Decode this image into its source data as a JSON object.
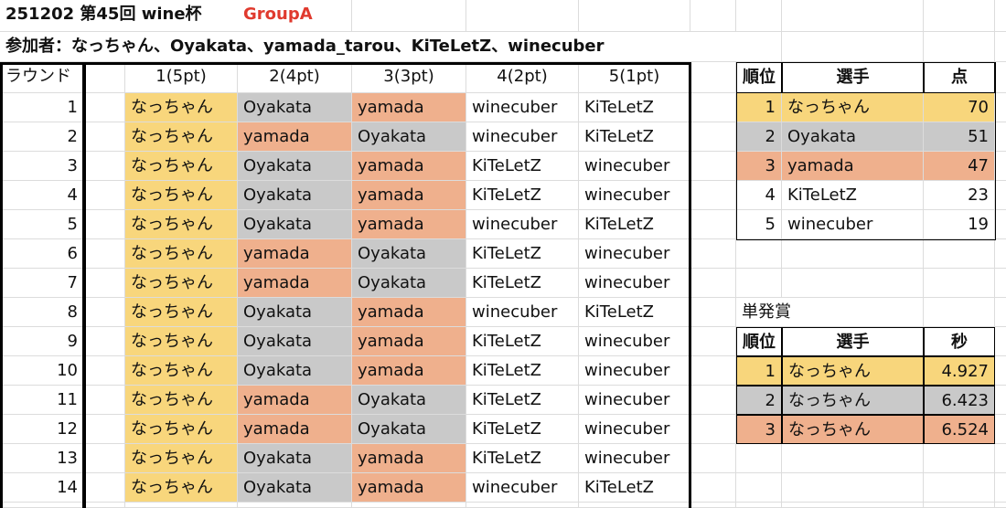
{
  "header": {
    "title": "251202 第45回 wine杯",
    "group": "GroupA",
    "participants": "参加者：なっちゃん、Oyakata、yamada_tarou、KiTeLetZ、winecuber"
  },
  "results": {
    "columns": [
      "ラウンド",
      "1(5pt)",
      "2(4pt)",
      "3(3pt)",
      "4(2pt)",
      "5(1pt)"
    ],
    "rows": [
      [
        1,
        "なっちゃん",
        "Oyakata",
        "yamada",
        "winecuber",
        "KiTeLetZ"
      ],
      [
        2,
        "なっちゃん",
        "yamada",
        "Oyakata",
        "winecuber",
        "KiTeLetZ"
      ],
      [
        3,
        "なっちゃん",
        "Oyakata",
        "yamada",
        "KiTeLetZ",
        "winecuber"
      ],
      [
        4,
        "なっちゃん",
        "Oyakata",
        "yamada",
        "KiTeLetZ",
        "winecuber"
      ],
      [
        5,
        "なっちゃん",
        "Oyakata",
        "yamada",
        "winecuber",
        "KiTeLetZ"
      ],
      [
        6,
        "なっちゃん",
        "yamada",
        "Oyakata",
        "KiTeLetZ",
        "winecuber"
      ],
      [
        7,
        "なっちゃん",
        "yamada",
        "Oyakata",
        "KiTeLetZ",
        "winecuber"
      ],
      [
        8,
        "なっちゃん",
        "Oyakata",
        "yamada",
        "winecuber",
        "KiTeLetZ"
      ],
      [
        9,
        "なっちゃん",
        "Oyakata",
        "yamada",
        "KiTeLetZ",
        "winecuber"
      ],
      [
        10,
        "なっちゃん",
        "Oyakata",
        "yamada",
        "KiTeLetZ",
        "winecuber"
      ],
      [
        11,
        "なっちゃん",
        "yamada",
        "Oyakata",
        "KiTeLetZ",
        "winecuber"
      ],
      [
        12,
        "なっちゃん",
        "yamada",
        "Oyakata",
        "KiTeLetZ",
        "winecuber"
      ],
      [
        13,
        "なっちゃん",
        "Oyakata",
        "yamada",
        "KiTeLetZ",
        "winecuber"
      ],
      [
        14,
        "なっちゃん",
        "Oyakata",
        "yamada",
        "winecuber",
        "KiTeLetZ"
      ]
    ]
  },
  "ranking": {
    "columns": [
      "順位",
      "選手",
      "点"
    ],
    "rows": [
      [
        1,
        "なっちゃん",
        70
      ],
      [
        2,
        "Oyakata",
        51
      ],
      [
        3,
        "yamada",
        47
      ],
      [
        4,
        "KiTeLetZ",
        23
      ],
      [
        5,
        "winecuber",
        19
      ]
    ],
    "colors": [
      "#f8d67c",
      "#c9c9c9",
      "#efb08d"
    ]
  },
  "single_shot": {
    "title": "単発賞",
    "columns": [
      "順位",
      "選手",
      "秒"
    ],
    "rows": [
      [
        1,
        "なっちゃん",
        4.927
      ],
      [
        2,
        "なっちゃん",
        6.423
      ],
      [
        3,
        "なっちゃん",
        6.524
      ]
    ],
    "colors": [
      "#f8d67c",
      "#c9c9c9",
      "#efb08d"
    ]
  }
}
